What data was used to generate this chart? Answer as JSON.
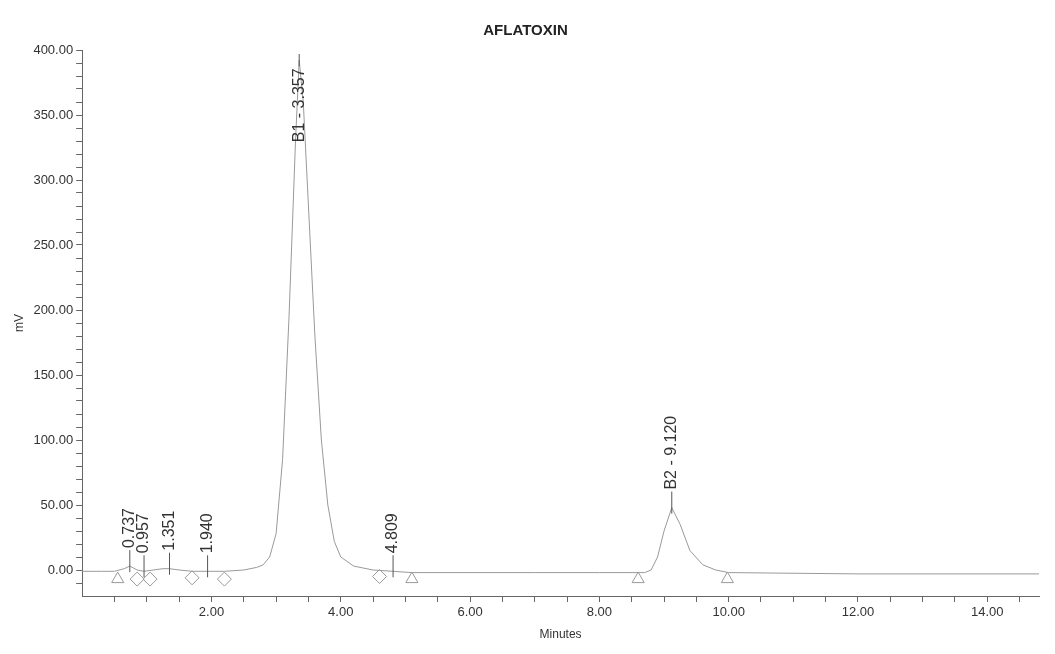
{
  "chart_data": {
    "type": "line",
    "title": "AFLATOXIN",
    "xlabel": "Minutes",
    "ylabel": "mV",
    "x": [
      0,
      0.3,
      0.5,
      0.65,
      0.737,
      0.85,
      0.957,
      1.1,
      1.25,
      1.351,
      1.5,
      1.7,
      1.94,
      2.2,
      2.5,
      2.7,
      2.8,
      2.9,
      3.0,
      3.1,
      3.2,
      3.3,
      3.357,
      3.42,
      3.5,
      3.6,
      3.7,
      3.8,
      3.9,
      4.0,
      4.2,
      4.5,
      4.809,
      5.1,
      6,
      7,
      8,
      8.7,
      8.8,
      8.9,
      9.0,
      9.12,
      9.25,
      9.4,
      9.6,
      9.8,
      10,
      12,
      14.8
    ],
    "series": [
      {
        "color": "#9a9a9a",
        "values": [
          -1,
          -1,
          -1,
          1,
          3,
          0,
          -1,
          0,
          1,
          1,
          0,
          -1,
          -1,
          -1,
          0,
          2,
          4,
          10,
          28,
          85,
          195,
          330,
          392,
          360,
          280,
          180,
          100,
          50,
          22,
          10,
          3,
          0,
          -1,
          -2,
          -2,
          -2,
          -2,
          -2,
          0,
          10,
          30,
          48,
          35,
          15,
          4,
          0,
          -2,
          -3,
          -3
        ]
      },
      {
        "type": "scatter",
        "marker": "triangle",
        "color": "#9a9a9a",
        "x": [
          0.55,
          5.1,
          8.6,
          9.98
        ],
        "values": [
          -7,
          -7,
          -7,
          -7
        ]
      },
      {
        "type": "scatter",
        "marker": "diamond",
        "color": "#9a9a9a",
        "x": [
          0.85,
          1.05,
          1.7,
          2.2,
          4.6
        ],
        "values": [
          -7,
          -7,
          -6,
          -7,
          -5
        ]
      }
    ],
    "xlim": [
      0,
      14.8
    ],
    "ylim": [
      -20,
      400
    ],
    "xticks": [
      {
        "value": 0.5,
        "label": null
      },
      {
        "value": 1,
        "label": null
      },
      {
        "value": 1.5,
        "label": null
      },
      {
        "value": 2,
        "label": "2.00"
      },
      {
        "value": 2.5,
        "label": null
      },
      {
        "value": 3,
        "label": null
      },
      {
        "value": 3.5,
        "label": null
      },
      {
        "value": 4,
        "label": "4.00"
      },
      {
        "value": 4.5,
        "label": null
      },
      {
        "value": 5,
        "label": null
      },
      {
        "value": 5.5,
        "label": null
      },
      {
        "value": 6,
        "label": "6.00"
      },
      {
        "value": 6.5,
        "label": null
      },
      {
        "value": 7,
        "label": null
      },
      {
        "value": 7.5,
        "label": null
      },
      {
        "value": 8,
        "label": "8.00"
      },
      {
        "value": 8.5,
        "label": null
      },
      {
        "value": 9,
        "label": null
      },
      {
        "value": 9.5,
        "label": null
      },
      {
        "value": 10,
        "label": "10.00"
      },
      {
        "value": 10.5,
        "label": null
      },
      {
        "value": 11,
        "label": null
      },
      {
        "value": 11.5,
        "label": null
      },
      {
        "value": 12,
        "label": "12.00"
      },
      {
        "value": 12.5,
        "label": null
      },
      {
        "value": 13,
        "label": null
      },
      {
        "value": 13.5,
        "label": null
      },
      {
        "value": 14,
        "label": "14.00"
      },
      {
        "value": 14.5,
        "label": null
      }
    ],
    "yticks": [
      {
        "value": -10,
        "label": null
      },
      {
        "value": 0,
        "label": "0.00"
      },
      {
        "value": 10,
        "label": null
      },
      {
        "value": 20,
        "label": null
      },
      {
        "value": 30,
        "label": null
      },
      {
        "value": 40,
        "label": null
      },
      {
        "value": 50,
        "label": "50.00"
      },
      {
        "value": 60,
        "label": null
      },
      {
        "value": 70,
        "label": null
      },
      {
        "value": 80,
        "label": null
      },
      {
        "value": 90,
        "label": null
      },
      {
        "value": 100,
        "label": "100.00"
      },
      {
        "value": 110,
        "label": null
      },
      {
        "value": 120,
        "label": null
      },
      {
        "value": 130,
        "label": null
      },
      {
        "value": 140,
        "label": null
      },
      {
        "value": 150,
        "label": "150.00"
      },
      {
        "value": 160,
        "label": null
      },
      {
        "value": 170,
        "label": null
      },
      {
        "value": 180,
        "label": null
      },
      {
        "value": 190,
        "label": null
      },
      {
        "value": 200,
        "label": "200.00"
      },
      {
        "value": 210,
        "label": null
      },
      {
        "value": 220,
        "label": null
      },
      {
        "value": 230,
        "label": null
      },
      {
        "value": 240,
        "label": null
      },
      {
        "value": 250,
        "label": "250.00"
      },
      {
        "value": 260,
        "label": null
      },
      {
        "value": 270,
        "label": null
      },
      {
        "value": 280,
        "label": null
      },
      {
        "value": 290,
        "label": null
      },
      {
        "value": 300,
        "label": "300.00"
      },
      {
        "value": 310,
        "label": null
      },
      {
        "value": 320,
        "label": null
      },
      {
        "value": 330,
        "label": null
      },
      {
        "value": 340,
        "label": null
      },
      {
        "value": 350,
        "label": "350.00"
      },
      {
        "value": 360,
        "label": null
      },
      {
        "value": 370,
        "label": null
      },
      {
        "value": 380,
        "label": null
      },
      {
        "value": 390,
        "label": null
      },
      {
        "value": 400,
        "label": "400.00"
      }
    ],
    "annotations": [
      {
        "text": "0.737",
        "x": 0.737,
        "y": 3
      },
      {
        "text": "0.957",
        "x": 0.957,
        "y": -1
      },
      {
        "text": "1.351",
        "x": 1.351,
        "y": 1
      },
      {
        "text": "1.940",
        "x": 1.94,
        "y": -1
      },
      {
        "text": "B1 - 3.357",
        "x": 3.357,
        "y": 392
      },
      {
        "text": "4.809",
        "x": 4.809,
        "y": -1
      },
      {
        "text": "B2 - 9.120",
        "x": 9.12,
        "y": 48
      }
    ],
    "grid": false,
    "legend": false,
    "marker": "none",
    "line_style": "solid"
  }
}
